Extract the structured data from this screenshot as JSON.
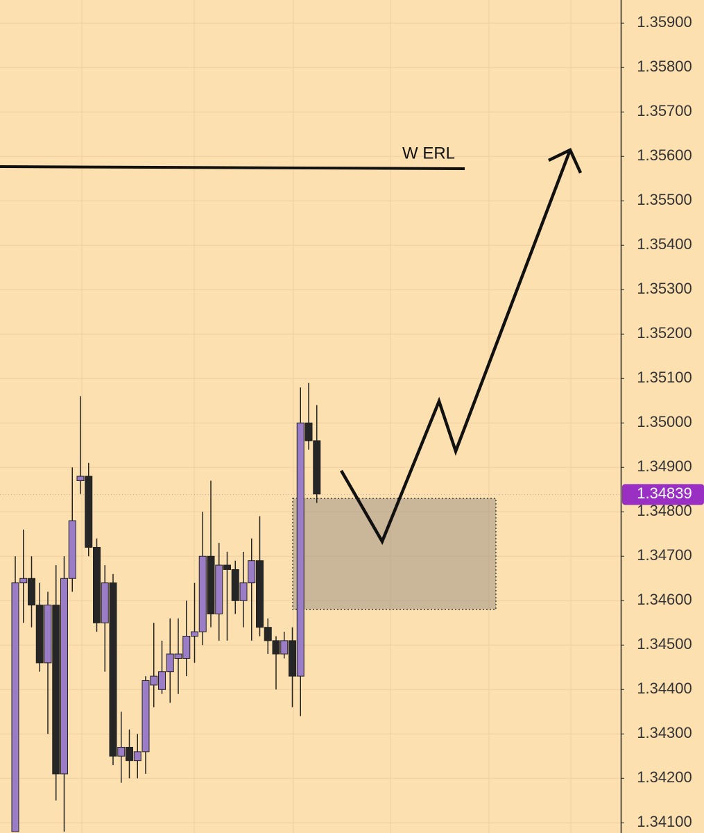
{
  "chart_data": {
    "type": "candlestick",
    "annotation": "W ERL",
    "last_price": 1.34839,
    "up_color": "#9b7cc6",
    "down_color": "#262626",
    "last_price_color": "#9a2fc4",
    "grid": true,
    "ylim": [
      1.34077,
      1.35952
    ],
    "yticks": [
      {
        "value": 1.359,
        "label": "1.35900"
      },
      {
        "value": 1.358,
        "label": "1.35800"
      },
      {
        "value": 1.357,
        "label": "1.35700"
      },
      {
        "value": 1.356,
        "label": "1.35600"
      },
      {
        "value": 1.355,
        "label": "1.35500"
      },
      {
        "value": 1.354,
        "label": "1.35400"
      },
      {
        "value": 1.353,
        "label": "1.35300"
      },
      {
        "value": 1.352,
        "label": "1.35200"
      },
      {
        "value": 1.351,
        "label": "1.35100"
      },
      {
        "value": 1.35,
        "label": "1.35000"
      },
      {
        "value": 1.349,
        "label": "1.34900"
      },
      {
        "value": 1.348,
        "label": "1.34800"
      },
      {
        "value": 1.347,
        "label": "1.34700"
      },
      {
        "value": 1.346,
        "label": "1.34600"
      },
      {
        "value": 1.345,
        "label": "1.34500"
      },
      {
        "value": 1.344,
        "label": "1.34400"
      },
      {
        "value": 1.343,
        "label": "1.34300"
      },
      {
        "value": 1.342,
        "label": "1.34200"
      },
      {
        "value": 1.341,
        "label": "1.34100"
      }
    ],
    "open": [
      1.3408,
      1.3464,
      1.3465,
      1.3459,
      1.3446,
      1.3459,
      1.3421,
      1.3465,
      1.3487,
      1.3488,
      1.3472,
      1.3455,
      1.3464,
      1.3425,
      1.3427,
      1.3424,
      1.3426,
      1.3441,
      1.344,
      1.3444,
      1.3447,
      1.3447,
      1.3452,
      1.3453,
      1.347,
      1.3457,
      1.3468,
      1.3467,
      1.346,
      1.3464,
      1.3469,
      1.3454,
      1.3451,
      1.3448,
      1.3451,
      1.3443,
      1.35,
      1.3496
    ],
    "high": [
      1.347,
      1.3476,
      1.347,
      1.3464,
      1.3462,
      1.3468,
      1.347,
      1.349,
      1.3506,
      1.3491,
      1.3474,
      1.3468,
      1.3466,
      1.3435,
      1.3431,
      1.343,
      1.3443,
      1.3455,
      1.3451,
      1.3456,
      1.3456,
      1.346,
      1.3464,
      1.348,
      1.3487,
      1.3473,
      1.3471,
      1.3469,
      1.3471,
      1.3474,
      1.3479,
      1.3456,
      1.3452,
      1.3453,
      1.3454,
      1.3508,
      1.3509,
      1.3504
    ],
    "low": [
      1.3408,
      1.3455,
      1.3454,
      1.3444,
      1.343,
      1.3415,
      1.3408,
      1.3462,
      1.3484,
      1.347,
      1.3453,
      1.3444,
      1.3423,
      1.3419,
      1.342,
      1.342,
      1.3421,
      1.3436,
      1.3439,
      1.3437,
      1.3439,
      1.3443,
      1.3446,
      1.345,
      1.3454,
      1.3451,
      1.3451,
      1.3457,
      1.3454,
      1.3451,
      1.3452,
      1.3448,
      1.344,
      1.3447,
      1.3436,
      1.3434,
      1.3494,
      1.3482
    ],
    "close": [
      1.3464,
      1.3465,
      1.3459,
      1.3446,
      1.3459,
      1.3421,
      1.3465,
      1.3478,
      1.3488,
      1.3472,
      1.3455,
      1.3464,
      1.3425,
      1.3427,
      1.3424,
      1.3426,
      1.3442,
      1.3443,
      1.3444,
      1.3448,
      1.3448,
      1.3452,
      1.3453,
      1.347,
      1.3457,
      1.3468,
      1.3467,
      1.346,
      1.3464,
      1.3469,
      1.3454,
      1.3451,
      1.3448,
      1.3451,
      1.3443,
      1.35,
      1.3496,
      1.3484
    ]
  }
}
